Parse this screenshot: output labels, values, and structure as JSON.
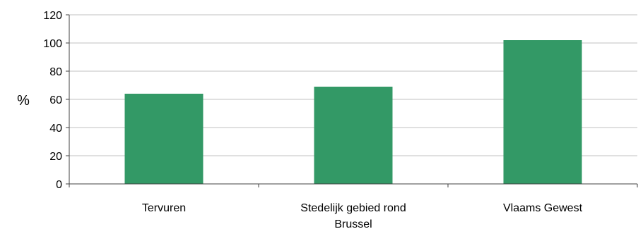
{
  "chart_data": {
    "type": "bar",
    "title": "",
    "xlabel": "",
    "ylabel": "%",
    "categories": [
      "Tervuren",
      "Stedelijk gebied rond Brussel",
      "Vlaams Gewest"
    ],
    "category_lines": [
      [
        "Tervuren"
      ],
      [
        "Stedelijk gebied rond",
        "Brussel"
      ],
      [
        "Vlaams Gewest"
      ]
    ],
    "values": [
      64,
      69,
      102
    ],
    "ylim": [
      0,
      120
    ],
    "yticks": [
      0,
      20,
      40,
      60,
      80,
      100,
      120
    ],
    "grid": true,
    "bar_color": "#339966",
    "grid_color": "#c0c0c0",
    "axis_color": "#404040"
  }
}
